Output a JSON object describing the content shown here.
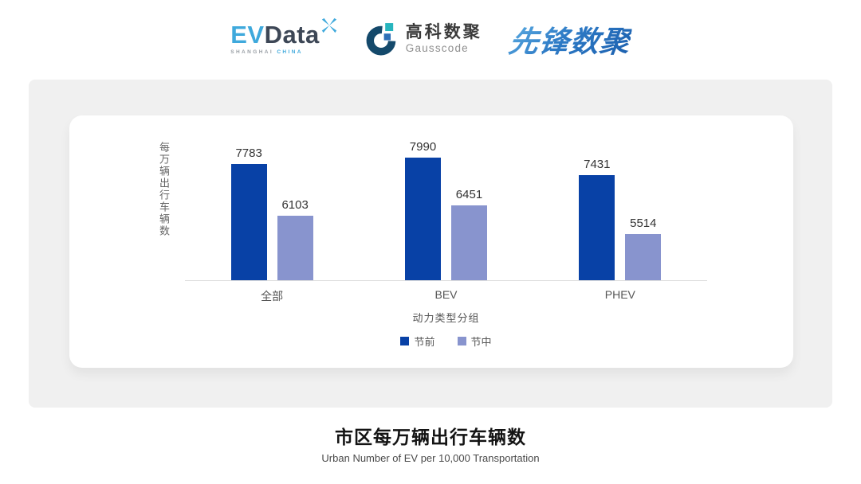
{
  "header": {
    "evdata": {
      "ev": "EV",
      "data": "Data",
      "sub_left": "SHANGHAI",
      "sub_right": "CHINA",
      "accent_color": "#3FA9DC",
      "dark_color": "#3D4756"
    },
    "gausscode": {
      "cn": "高科数聚",
      "en": "Gausscode",
      "ring_color": "#14496B",
      "teal_color": "#27B5BE",
      "blue_color": "#2E6FB7"
    },
    "xianfeng": {
      "text": "先锋数聚",
      "color": "#2E7BC6"
    }
  },
  "chart_data": {
    "type": "bar",
    "categories": [
      "全部",
      "BEV",
      "PHEV"
    ],
    "series": [
      {
        "name": "节前",
        "color": "#0841A6",
        "values": [
          7783,
          7990,
          7431
        ]
      },
      {
        "name": "节中",
        "color": "#8894CE",
        "values": [
          6103,
          6451,
          5514
        ]
      }
    ],
    "ylabel": "每万辆出行车辆数",
    "xlabel": "动力类型分组",
    "axis_min": 4000,
    "grid": false,
    "legend_position": "bottom",
    "value_labels": true
  },
  "footer": {
    "title": "市区每万辆出行车辆数",
    "subtitle": "Urban Number of EV per 10,000 Transportation"
  },
  "colors": {
    "panel_background": "#F0F0F0",
    "card_background": "#FFFFFF",
    "baseline": "#DDDDDD",
    "value_label_text": "#333333",
    "axis_text": "#555555"
  }
}
